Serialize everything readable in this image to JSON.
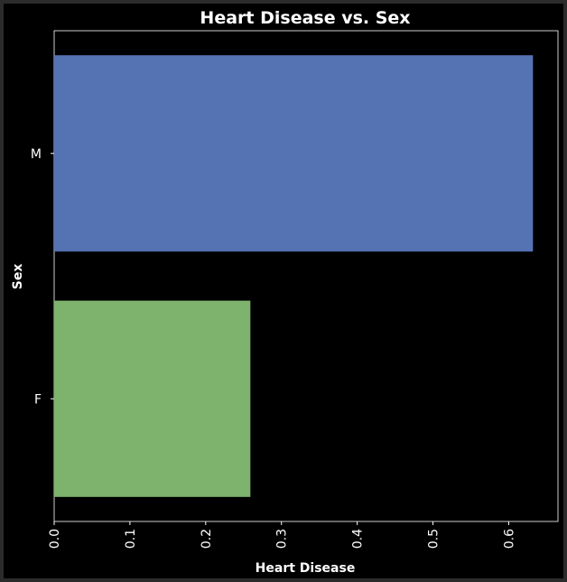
{
  "chart_data": {
    "type": "bar",
    "orientation": "horizontal",
    "title": "Heart Disease vs. Sex",
    "xlabel": "Heart Disease",
    "ylabel": "Sex",
    "categories": [
      "M",
      "F"
    ],
    "values": [
      0.632,
      0.259
    ],
    "xlim": [
      0,
      0.665
    ],
    "xticks": [
      "0.0",
      "0.1",
      "0.2",
      "0.3",
      "0.4",
      "0.5",
      "0.6"
    ],
    "xtick_values": [
      0.0,
      0.1,
      0.2,
      0.3,
      0.4,
      0.5,
      0.6
    ],
    "colors": [
      "#5573b3",
      "#7db36d"
    ],
    "background": "#000000",
    "grid": false,
    "legend": "none"
  }
}
